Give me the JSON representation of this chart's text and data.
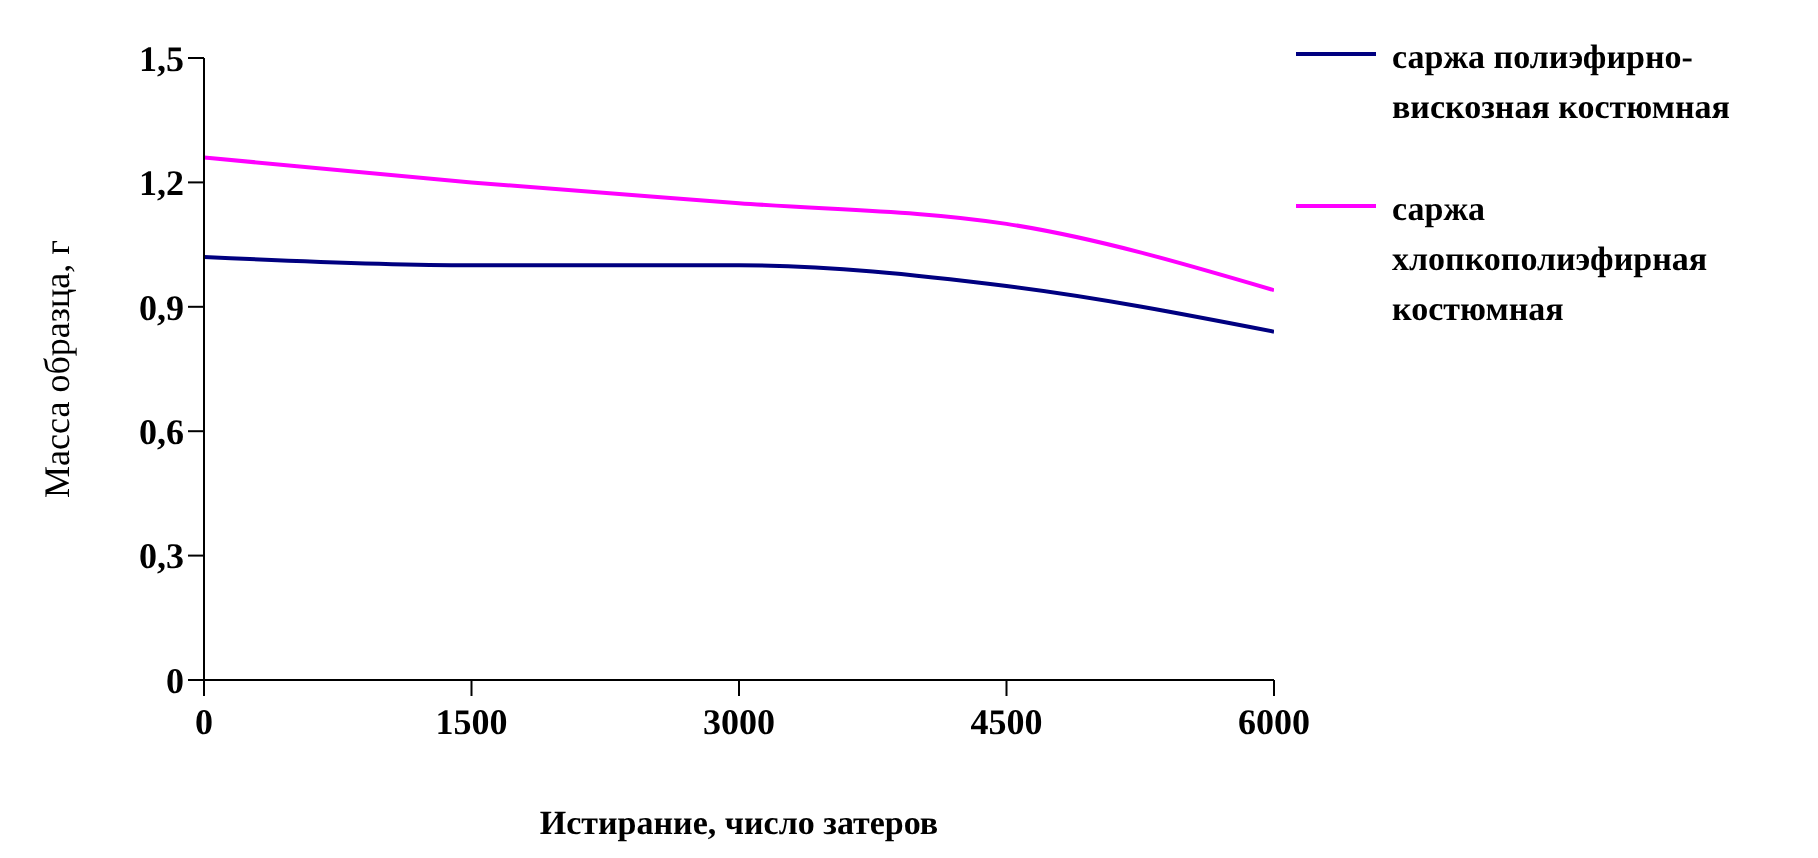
{
  "chart_data": {
    "type": "line",
    "xlabel": "Истирание, число затеров",
    "ylabel": "Масса образца, г",
    "x": [
      0,
      1500,
      3000,
      4500,
      6000
    ],
    "series": [
      {
        "name": "саржа полиэфирно-вискозная костюмная",
        "color": "#000080",
        "values": [
          1.02,
          1.0,
          1.0,
          0.95,
          0.84
        ]
      },
      {
        "name": "саржа хлопкополиэфирная костюмная",
        "color": "#ff00ff",
        "values": [
          1.26,
          1.2,
          1.15,
          1.1,
          0.94
        ]
      }
    ],
    "xlim": [
      0,
      6000
    ],
    "xticks": [
      0,
      1500,
      3000,
      4500,
      6000
    ],
    "ylim": [
      0,
      1.5
    ],
    "yticks": [
      0,
      {
        "value": 0.3,
        "label": "0,3"
      },
      {
        "value": 0.6,
        "label": "0,6"
      },
      {
        "value": 0.9,
        "label": "0,9"
      },
      {
        "value": 1.2,
        "label": "1,2"
      },
      {
        "value": 1.5,
        "label": "1,5"
      }
    ],
    "legend": "right",
    "marker": "none",
    "grid": false
  }
}
